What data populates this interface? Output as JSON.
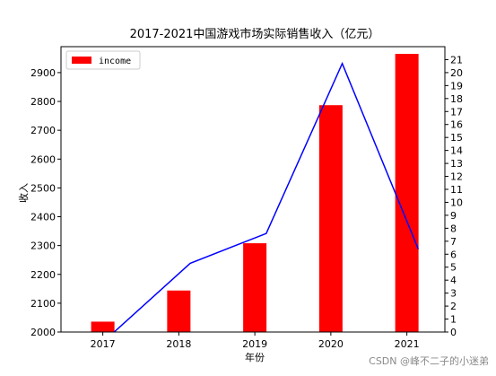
{
  "chart_data": {
    "type": "bar",
    "title": "2017-2021中国游戏市场实际销售收入（亿元）",
    "xlabel": "年份",
    "ylabel": "收入",
    "categories": [
      "2017",
      "2018",
      "2019",
      "2020",
      "2021"
    ],
    "series": [
      {
        "name": "income",
        "type": "bar",
        "axis": "left",
        "color": "#ff0000",
        "values": [
          2036,
          2144,
          2308,
          2787,
          2965
        ]
      },
      {
        "type": "line",
        "axis": "right",
        "color": "#0000ff",
        "x": [
          2017.15,
          2018.15,
          2019.15,
          2020.15,
          2021.15
        ],
        "values": [
          0,
          5.3,
          7.6,
          20.7,
          6.4
        ]
      }
    ],
    "xlim": [
      2016.45,
      2021.5
    ],
    "ylim_left": [
      2000,
      2990
    ],
    "ylim_right": [
      0,
      22
    ],
    "yticks_left": [
      2000,
      2100,
      2200,
      2300,
      2400,
      2500,
      2600,
      2700,
      2800,
      2900
    ],
    "yticks_right": [
      0,
      1,
      2,
      3,
      4,
      5,
      6,
      7,
      8,
      9,
      10,
      11,
      12,
      13,
      14,
      15,
      16,
      17,
      18,
      19,
      20,
      21
    ],
    "legend": {
      "position": "top-left",
      "entries": [
        "income"
      ]
    },
    "grid": false
  },
  "watermark": "CSDN @峰不二子的小迷弟"
}
